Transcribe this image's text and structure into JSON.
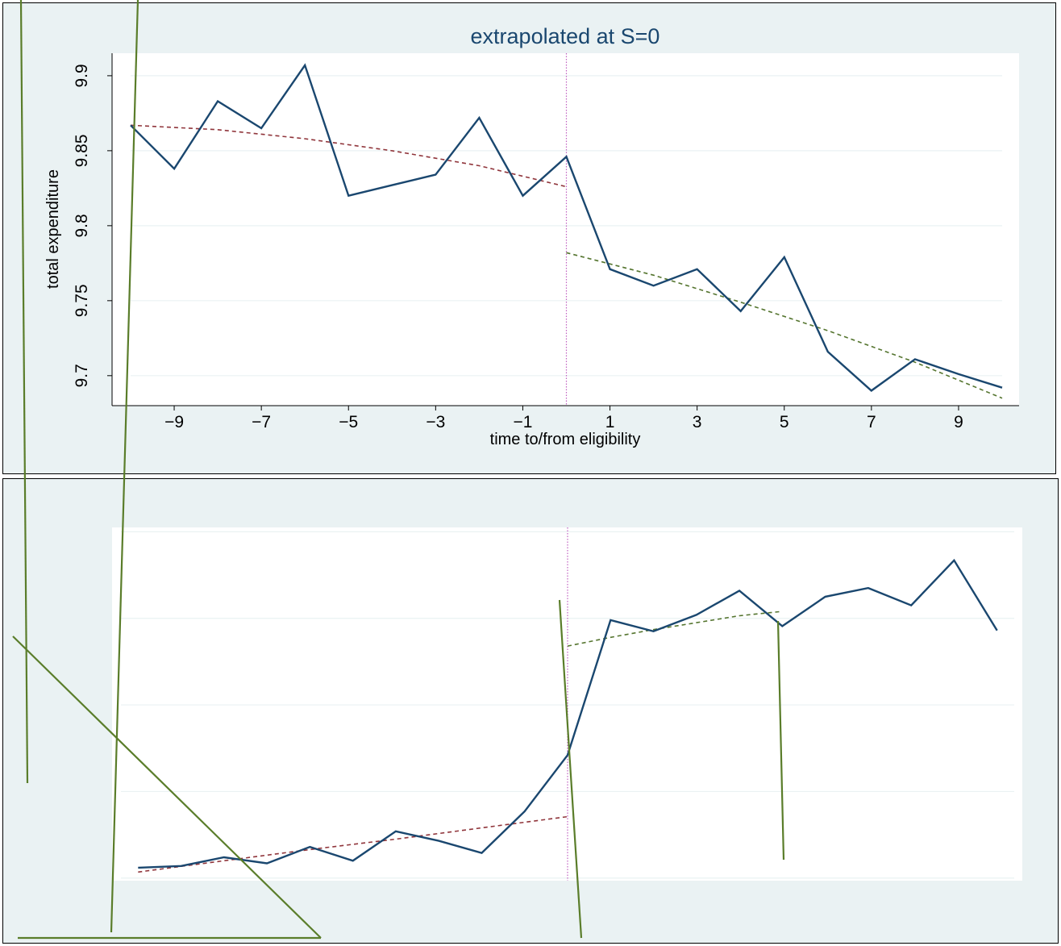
{
  "chart_data": [
    {
      "type": "line",
      "title": "extrapolated at S=0",
      "xlabel": "time to/from eligibility",
      "ylabel": "total expenditure",
      "xlim": [
        -10,
        10
      ],
      "ylim": [
        9.68,
        9.915
      ],
      "xticks": [
        -9,
        -7,
        -5,
        -3,
        -1,
        1,
        3,
        5,
        7,
        9
      ],
      "xtick_labels": [
        "−9",
        "−7",
        "−5",
        "−3",
        "−1",
        "1",
        "3",
        "5",
        "7",
        "9"
      ],
      "yticks": [
        9.7,
        9.75,
        9.8,
        9.85,
        9.9
      ],
      "ytick_labels": [
        "9.7",
        "9.75",
        "9.8",
        "9.85",
        "9.9"
      ],
      "grid": true,
      "cutoff_x": 0,
      "series": [
        {
          "x": [
            -10,
            -9,
            -8,
            -7,
            -6,
            -5,
            -4,
            -3,
            -2,
            -1,
            0,
            1,
            2,
            3,
            4,
            5,
            6,
            7,
            8,
            9,
            10
          ],
          "values": [
            9.867,
            9.838,
            9.883,
            9.865,
            9.907,
            9.82,
            9.827,
            9.834,
            9.872,
            9.82,
            9.846,
            9.771,
            9.76,
            9.771,
            9.743,
            9.779,
            9.716,
            9.69,
            9.711,
            9.701,
            9.692
          ]
        },
        {
          "x": [
            -10,
            -8,
            -6,
            -4,
            -2,
            0
          ],
          "values": [
            9.867,
            9.864,
            9.858,
            9.85,
            9.84,
            9.826
          ]
        },
        {
          "x": [
            0,
            2,
            4,
            6,
            8,
            10
          ],
          "values": [
            9.782,
            9.767,
            9.749,
            9.73,
            9.709,
            9.685
          ]
        }
      ]
    },
    {
      "type": "line",
      "title": "",
      "xlabel": "",
      "ylabel": "",
      "xlim": [
        -10.4,
        10.4
      ],
      "ylim": [
        -0.03,
        4.05
      ],
      "yticks": [
        0,
        1,
        2,
        3,
        4
      ],
      "grid": true,
      "cutoff_x": 0,
      "series": [
        {
          "x": [
            -10,
            -9,
            -8,
            -7,
            -6,
            -5,
            -4,
            -3,
            -2,
            -1,
            0,
            1,
            2,
            3,
            4,
            5,
            6,
            7,
            8,
            9,
            10
          ],
          "values": [
            0.12,
            0.14,
            0.24,
            0.17,
            0.36,
            0.2,
            0.54,
            0.43,
            0.29,
            0.77,
            1.42,
            2.98,
            2.85,
            3.04,
            3.32,
            2.91,
            3.25,
            3.35,
            3.15,
            3.67,
            2.86
          ]
        },
        {
          "x": [
            -10,
            -8,
            -6,
            -4,
            -2,
            0
          ],
          "values": [
            0.07,
            0.2,
            0.33,
            0.45,
            0.58,
            0.71
          ]
        },
        {
          "x": [
            0,
            1,
            2,
            3,
            4,
            5
          ],
          "values": [
            2.68,
            2.78,
            2.87,
            2.95,
            3.03,
            3.08
          ]
        }
      ]
    }
  ],
  "colors": {
    "panel_background": "#eaf2f3",
    "main_series": "#1a476f",
    "pre_fit": "#90353b",
    "post_fit": "#55752f",
    "cutoff_line": "#c060c0",
    "overlay_strokes": "#5a7d2a"
  }
}
